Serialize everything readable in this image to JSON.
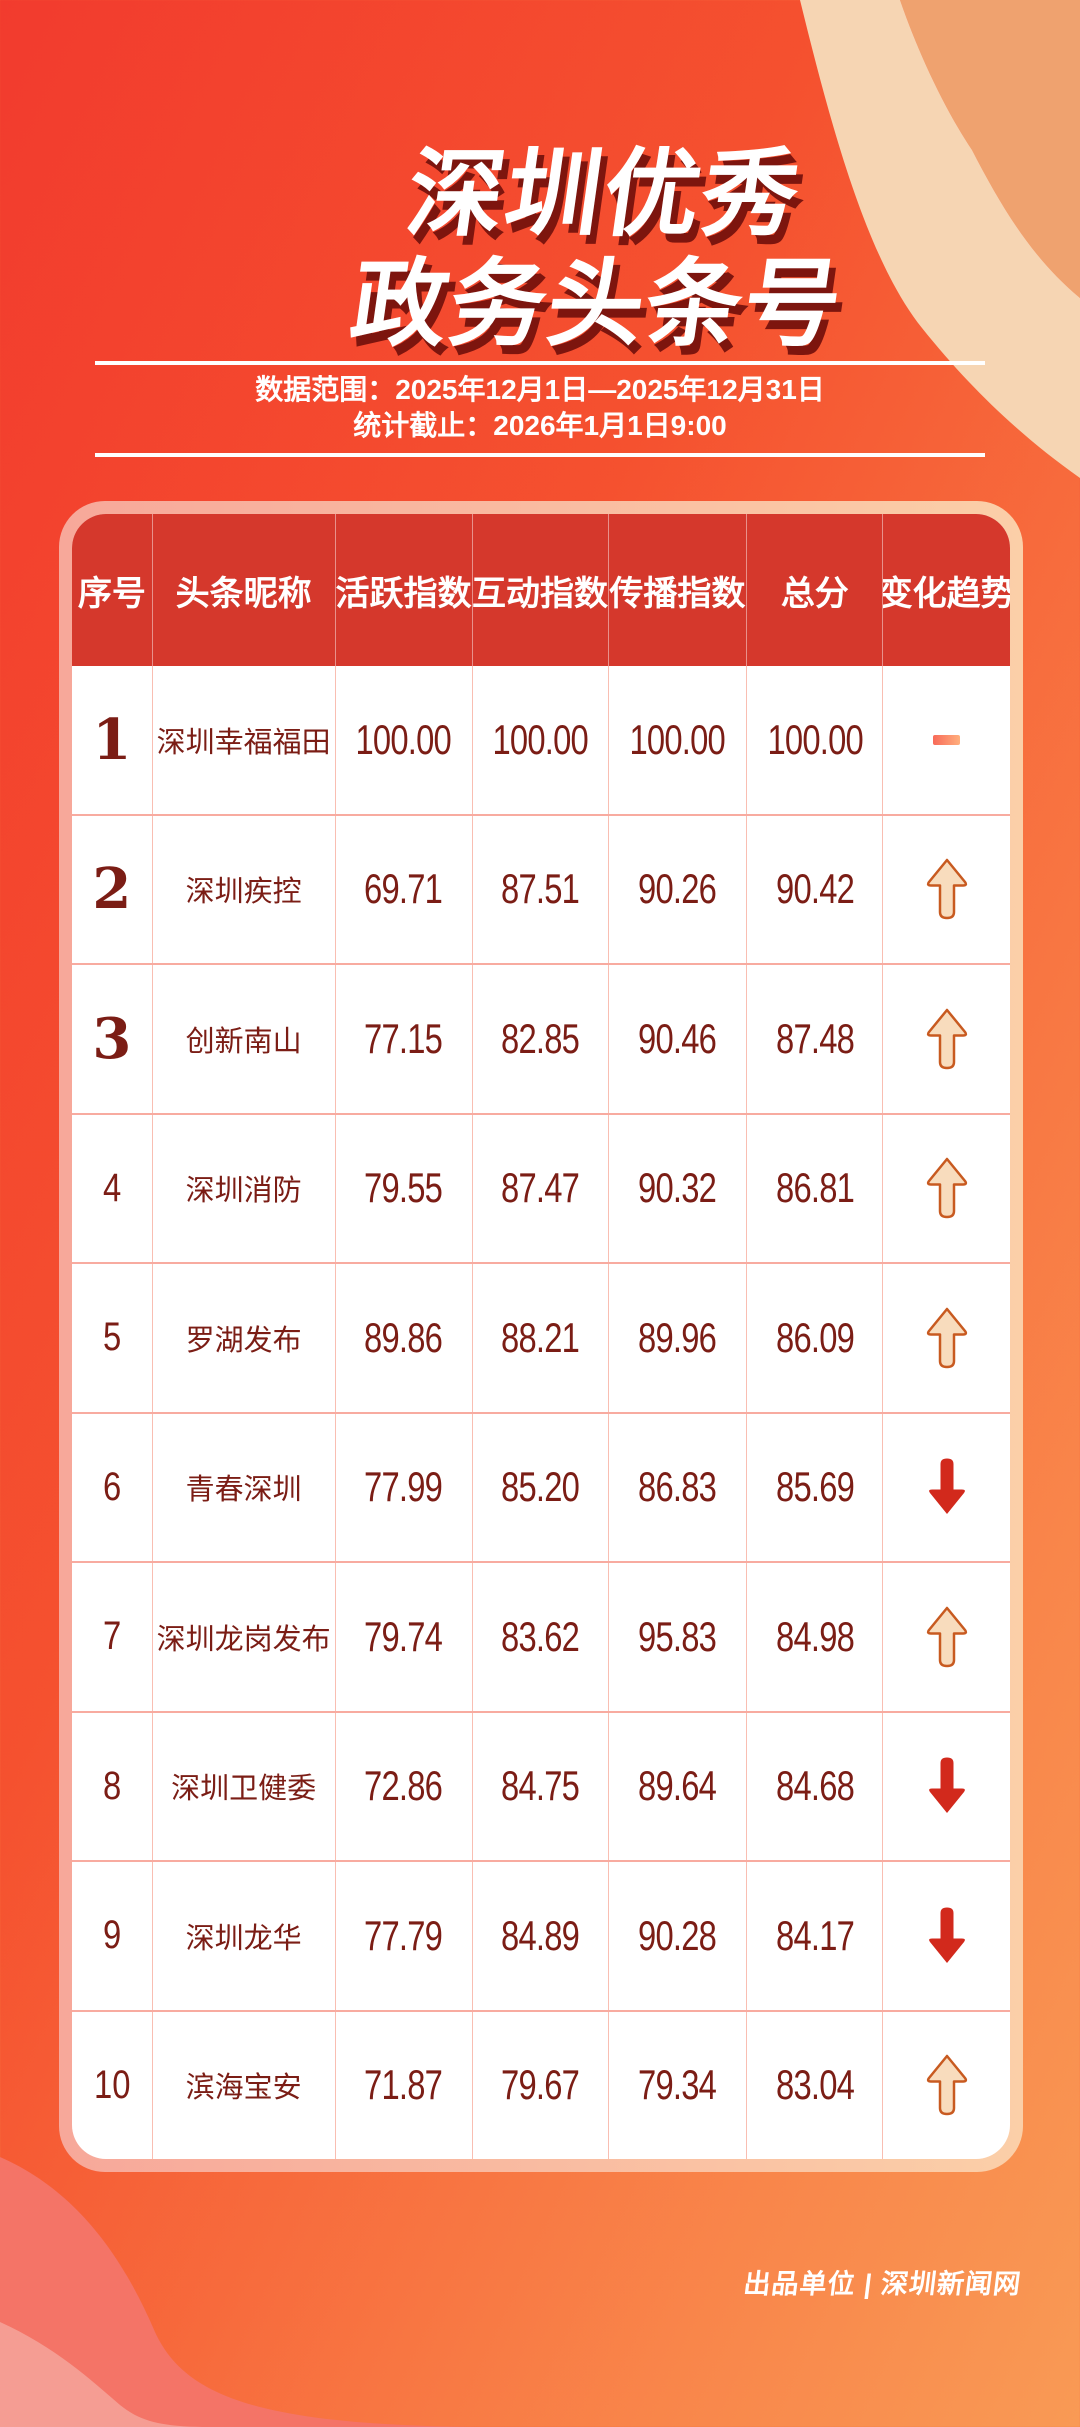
{
  "title": {
    "line1": "深圳优秀",
    "line2": "政务头条号"
  },
  "meta": {
    "line1": "数据范围：2025年12月1日—2025年12月31日",
    "line2": "统计截止：2026年1月1日9:00"
  },
  "chart_data": {
    "type": "table",
    "title": "深圳优秀政务头条号",
    "columns": [
      "序号",
      "头条昵称",
      "活跃指数",
      "互动指数",
      "传播指数",
      "总分",
      "变化趋势"
    ],
    "rows": [
      {
        "rank": "1",
        "name": "深圳幸福福田",
        "active": "100.00",
        "interact": "100.00",
        "spread": "100.00",
        "total": "100.00",
        "trend": "flat"
      },
      {
        "rank": "2",
        "name": "深圳疾控",
        "active": "69.71",
        "interact": "87.51",
        "spread": "90.26",
        "total": "90.42",
        "trend": "up"
      },
      {
        "rank": "3",
        "name": "创新南山",
        "active": "77.15",
        "interact": "82.85",
        "spread": "90.46",
        "total": "87.48",
        "trend": "up"
      },
      {
        "rank": "4",
        "name": "深圳消防",
        "active": "79.55",
        "interact": "87.47",
        "spread": "90.32",
        "total": "86.81",
        "trend": "up"
      },
      {
        "rank": "5",
        "name": "罗湖发布",
        "active": "89.86",
        "interact": "88.21",
        "spread": "89.96",
        "total": "86.09",
        "trend": "up"
      },
      {
        "rank": "6",
        "name": "青春深圳",
        "active": "77.99",
        "interact": "85.20",
        "spread": "86.83",
        "total": "85.69",
        "trend": "down"
      },
      {
        "rank": "7",
        "name": "深圳龙岗发布",
        "active": "79.74",
        "interact": "83.62",
        "spread": "95.83",
        "total": "84.98",
        "trend": "up"
      },
      {
        "rank": "8",
        "name": "深圳卫健委",
        "active": "72.86",
        "interact": "84.75",
        "spread": "89.64",
        "total": "84.68",
        "trend": "down"
      },
      {
        "rank": "9",
        "name": "深圳龙华",
        "active": "77.79",
        "interact": "84.89",
        "spread": "90.28",
        "total": "84.17",
        "trend": "down"
      },
      {
        "rank": "10",
        "name": "滨海宝安",
        "active": "71.87",
        "interact": "79.67",
        "spread": "79.34",
        "total": "83.04",
        "trend": "up"
      }
    ],
    "trend_legend": {
      "up": "rank-up",
      "down": "rank-down",
      "flat": "no-change"
    }
  },
  "footer": {
    "credit": "出品单位 | 深圳新闻网"
  },
  "colors": {
    "title_shadow": "#7d150e",
    "header_bg": "#d5382c",
    "cell_text": "#7b1d15",
    "grid_line": "#f8aba0",
    "card_border_left": "#f7a89a",
    "card_border_right": "#fbcfa8",
    "up_arrow_fill": "#f8dcbd",
    "up_arrow_stroke": "#c85a20",
    "down_arrow": "#d2291c",
    "flat_left": "#f86a59",
    "flat_right": "#ffaf7d",
    "wave_cream": "#f6d5b3",
    "wave_peach": "#efa26f",
    "wave_pink_light": "#f59d93",
    "wave_salmon": "#f47467"
  }
}
